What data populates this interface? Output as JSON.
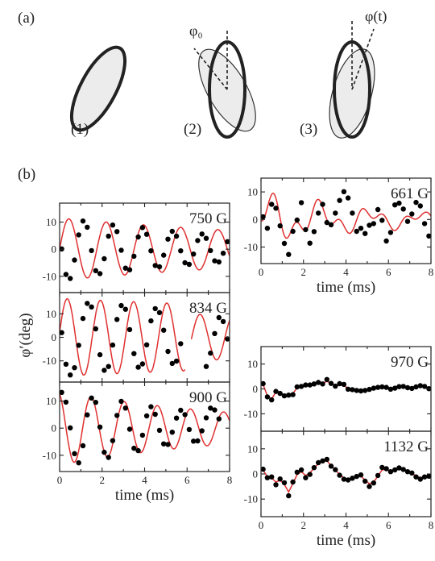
{
  "panel_a": {
    "letter": "(a)",
    "steps": [
      {
        "number": "(1)"
      },
      {
        "number": "(2)",
        "angle_label": "φ₀"
      },
      {
        "number": "(3)",
        "angle_label": "φ(t)"
      }
    ]
  },
  "panel_b": {
    "letter": "(b)",
    "ylabel": "φ′(deg)",
    "xlabel": "time (ms)"
  },
  "colors": {
    "data_points": "#000000",
    "fit_curve": "#e03030",
    "ellipse_fill": "#ececec",
    "ellipse_edge": "#222222"
  },
  "chart_data": [
    {
      "type": "scatter",
      "field_label": "750 G",
      "xlabel": "",
      "ylabel": "φ′(deg)",
      "xlim": [
        0,
        8
      ],
      "ylim": [
        -16,
        17
      ],
      "xticks": [],
      "yticks": [
        -10,
        0,
        10
      ],
      "series": [
        {
          "kind": "points",
          "x": [
            0.1,
            0.3,
            0.5,
            0.7,
            0.9,
            1.1,
            1.3,
            1.5,
            1.7,
            1.9,
            2.1,
            2.3,
            2.5,
            2.7,
            2.9,
            3.1,
            3.3,
            3.5,
            3.7,
            3.9,
            4.1,
            4.3,
            4.5,
            4.7,
            4.9,
            5.1,
            5.3,
            5.5,
            5.7,
            5.9,
            6.1,
            6.3,
            6.5,
            6.7,
            6.9,
            7.1,
            7.3,
            7.5,
            7.7,
            7.9
          ],
          "y": [
            0.1,
            -9.3,
            -10.8,
            -4.0,
            5.3,
            10.4,
            8.1,
            -0.5,
            -7.9,
            -9.0,
            -3.5,
            4.8,
            8.9,
            6.5,
            -0.4,
            -7.0,
            -7.6,
            -2.6,
            4.5,
            8.0,
            5.5,
            -0.6,
            -6.0,
            -6.5,
            -2.2,
            3.7,
            6.6,
            4.8,
            -0.6,
            -5.0,
            -5.6,
            -1.8,
            3.2,
            5.6,
            4.0,
            -0.5,
            -4.3,
            -4.7,
            -1.5,
            2.8
          ]
        },
        {
          "kind": "fit",
          "A": 11.5,
          "tau": 16,
          "freq": 0.57,
          "phase": -1.57,
          "x_end": 8
        }
      ]
    },
    {
      "type": "scatter",
      "field_label": "834 G",
      "xlabel": "",
      "ylabel": "φ′(deg)",
      "xlim": [
        0,
        8
      ],
      "ylim": [
        -19,
        19
      ],
      "xticks": [],
      "yticks": [
        -10,
        0,
        10
      ],
      "series": [
        {
          "kind": "points",
          "x": [
            0.1,
            0.3,
            0.5,
            0.7,
            0.9,
            1.1,
            1.3,
            1.5,
            1.7,
            1.9,
            2.1,
            2.3,
            2.5,
            2.7,
            2.9,
            3.1,
            3.3,
            3.5,
            3.7,
            3.9,
            4.1,
            4.3,
            4.5,
            4.7,
            4.9,
            5.1,
            5.3,
            5.5,
            5.7,
            6.9,
            7.1,
            7.3,
            7.5,
            7.7,
            7.9
          ],
          "y": [
            2.0,
            -11.4,
            -16.0,
            -12.9,
            -3.4,
            8.0,
            14.4,
            12.9,
            3.6,
            -7.4,
            -14.0,
            -12.4,
            -3.3,
            7.6,
            13.5,
            11.9,
            3.3,
            -6.9,
            -12.7,
            -11.3,
            -3.2,
            7.0,
            12.2,
            10.5,
            3.0,
            -6.0,
            -11.1,
            -10.1,
            -2.7,
            -12.4,
            -6.7,
            1.6,
            8.4,
            6.7,
            -0.7
          ]
        },
        {
          "kind": "fit",
          "A": 16.5,
          "tau": 40,
          "freq": 0.64,
          "phase": -1.45,
          "x_end": 5.9
        },
        {
          "kind": "fit",
          "A": 11.5,
          "tau": 40,
          "freq": 0.64,
          "phase": -1.45,
          "x_start": 6.2,
          "x_end": 8
        }
      ]
    },
    {
      "type": "scatter",
      "field_label": "900 G",
      "xlabel": "time (ms)",
      "ylabel": "φ′(deg)",
      "xlim": [
        0,
        8
      ],
      "ylim": [
        -16,
        17
      ],
      "xticks": [
        0,
        2,
        4,
        6,
        8
      ],
      "yticks": [
        -10,
        0,
        10
      ],
      "series": [
        {
          "kind": "points",
          "x": [
            0.1,
            0.3,
            0.5,
            0.7,
            0.9,
            1.1,
            1.3,
            1.5,
            1.7,
            1.9,
            2.1,
            2.3,
            2.5,
            2.7,
            2.9,
            3.1,
            3.3,
            3.5,
            3.7,
            3.9,
            4.1,
            4.3,
            4.5,
            4.7,
            4.9,
            5.1,
            5.3,
            5.5,
            5.7,
            5.9,
            6.1,
            6.3,
            6.5,
            6.7,
            6.9,
            7.1,
            7.3,
            7.5
          ],
          "y": [
            13.2,
            9.6,
            0.1,
            -9.4,
            -12.8,
            -6.5,
            4.9,
            11.1,
            9.5,
            0.4,
            -8.9,
            -10.8,
            -4.6,
            4.7,
            9.9,
            7.4,
            -0.4,
            -7.4,
            -8.3,
            -2.6,
            4.5,
            7.9,
            5.1,
            -0.8,
            -5.8,
            -6.0,
            -1.5,
            3.7,
            6.6,
            5.0,
            -0.5,
            -4.8,
            -4.7,
            -1.0,
            3.8,
            7.4,
            6.7,
            3.4
          ]
        },
        {
          "kind": "fit",
          "A": 13.5,
          "tau": 9.5,
          "freq": 0.64,
          "phase": 0.35,
          "x_end": 8
        }
      ]
    },
    {
      "type": "scatter",
      "field_label": "661 G",
      "xlabel": "time (ms)",
      "ylabel": "φ′(deg)",
      "xlim": [
        0,
        8
      ],
      "ylim": [
        -16,
        15
      ],
      "xticks": [
        0,
        2,
        4,
        6,
        8
      ],
      "yticks": [
        -10,
        0,
        10
      ],
      "series": [
        {
          "kind": "points",
          "x": [
            0.1,
            0.3,
            0.5,
            0.7,
            0.9,
            1.1,
            1.3,
            1.5,
            1.7,
            1.9,
            2.1,
            2.3,
            2.5,
            2.7,
            2.9,
            3.1,
            3.3,
            3.5,
            3.7,
            3.9,
            4.1,
            4.3,
            4.5,
            4.7,
            4.9,
            5.1,
            5.3,
            5.5,
            5.7,
            5.9,
            6.1,
            6.3,
            6.5,
            6.7,
            6.9,
            7.1,
            7.3,
            7.5,
            7.7,
            7.9
          ],
          "y": [
            1.0,
            -3.2,
            5.5,
            4.1,
            -2.3,
            -8.7,
            -12.7,
            -4.3,
            -0.2,
            6.1,
            -3.7,
            -8.6,
            -4.4,
            2.3,
            5.5,
            -1.1,
            -1.9,
            2.3,
            6.9,
            10.1,
            7.8,
            2.3,
            -4.3,
            -3.2,
            -5.1,
            -2.1,
            -1.5,
            3.6,
            -0.3,
            -7.8,
            -4.7,
            5.3,
            5.9,
            3.8,
            -0.7,
            2.0,
            6.2,
            4.9,
            -1.5,
            -6.0
          ]
        },
        {
          "kind": "fit_components",
          "terms": [
            {
              "A": 6.5,
              "tau": 6,
              "freq": 0.42,
              "phase": -1.0
            },
            {
              "A": 5,
              "tau": 6,
              "freq": 0.97,
              "phase": 2.5
            }
          ],
          "x_end": 8
        }
      ]
    },
    {
      "type": "scatter",
      "field_label": "970 G",
      "xlabel": "",
      "ylabel": "φ′(deg)",
      "xlim": [
        0,
        8
      ],
      "ylim": [
        -17,
        17
      ],
      "xticks": [],
      "yticks": [
        -10,
        0,
        10
      ],
      "series": [
        {
          "kind": "points",
          "x": [
            0.1,
            0.3,
            0.5,
            0.7,
            0.9,
            1.1,
            1.3,
            1.5,
            1.7,
            1.9,
            2.1,
            2.3,
            2.5,
            2.7,
            2.9,
            3.1,
            3.3,
            3.5,
            3.7,
            3.9,
            4.1,
            4.3,
            4.5,
            4.7,
            4.9,
            5.1,
            5.3,
            5.5,
            5.7,
            5.9,
            6.1,
            6.3,
            6.5,
            6.7,
            6.9,
            7.1,
            7.3,
            7.5,
            7.7,
            7.9
          ],
          "y": [
            2.1,
            -3.2,
            -4.4,
            -1.0,
            -1.8,
            -2.8,
            -2.5,
            -2.3,
            0.8,
            1.0,
            1.6,
            1.6,
            2.0,
            2.6,
            2.0,
            3.8,
            2.2,
            1.1,
            2.1,
            1.8,
            -0.1,
            -0.3,
            -0.6,
            -0.8,
            -0.6,
            -0.2,
            0.3,
            0.6,
            0.8,
            0.6,
            -0.1,
            0.3,
            0.9,
            1.0,
            0.5,
            0.2,
            0.8,
            1.3,
            1.0,
            0.1
          ]
        },
        {
          "kind": "fit_points",
          "x": [
            0.1,
            0.3,
            0.5,
            0.7,
            0.9,
            1.1,
            1.3,
            1.5,
            1.7,
            1.9,
            2.1,
            2.3,
            2.5,
            2.7,
            2.9,
            3.1,
            3.3,
            3.5,
            3.7,
            3.9,
            4.1,
            4.3,
            4.5,
            4.7,
            4.9,
            5.1,
            5.3,
            5.5,
            5.7,
            5.9,
            6.1,
            6.3,
            6.5,
            6.7,
            6.9,
            7.1,
            7.3,
            7.5,
            7.7,
            7.9
          ],
          "y": [
            1.8,
            -2.8,
            -4.0,
            -1.3,
            -1.6,
            -2.6,
            -2.4,
            -1.8,
            0.4,
            1.0,
            1.4,
            1.7,
            2.0,
            2.3,
            2.3,
            3.0,
            2.3,
            1.4,
            1.6,
            1.3,
            0.3,
            -0.2,
            -0.5,
            -0.6,
            -0.5,
            -0.1,
            0.3,
            0.5,
            0.6,
            0.5,
            0.2,
            0.4,
            0.7,
            0.8,
            0.6,
            0.4,
            0.7,
            0.9,
            0.7,
            0.2
          ]
        }
      ]
    },
    {
      "type": "scatter",
      "field_label": "1132 G",
      "xlabel": "time (ms)",
      "ylabel": "φ′(deg)",
      "xlim": [
        0,
        8
      ],
      "ylim": [
        -17,
        17
      ],
      "xticks": [
        0,
        2,
        4,
        6,
        8
      ],
      "yticks": [
        -10,
        0,
        10
      ],
      "series": [
        {
          "kind": "points",
          "x": [
            0.1,
            0.3,
            0.5,
            0.7,
            0.9,
            1.1,
            1.3,
            1.5,
            1.7,
            1.9,
            2.1,
            2.3,
            2.5,
            2.7,
            2.9,
            3.1,
            3.3,
            3.5,
            3.7,
            3.9,
            4.1,
            4.3,
            4.5,
            4.7,
            4.9,
            5.1,
            5.3,
            5.5,
            5.7,
            5.9,
            6.1,
            6.3,
            6.5,
            6.7,
            6.9,
            7.1,
            7.3,
            7.5,
            7.7,
            7.9
          ],
          "y": [
            1.9,
            -1.5,
            -1.2,
            -4.3,
            -2.0,
            -3.5,
            -8.7,
            -3.2,
            0.7,
            1.6,
            -1.5,
            -0.2,
            2.5,
            4.5,
            5.2,
            5.8,
            3.1,
            1.7,
            -0.5,
            -2.1,
            -2.4,
            -1.7,
            -1.0,
            -0.4,
            -2.9,
            -5.0,
            -3.6,
            -0.6,
            2.6,
            2.1,
            0.9,
            1.6,
            2.4,
            1.8,
            0.9,
            0.4,
            -1.2,
            -2.1,
            -1.2,
            -0.9
          ]
        },
        {
          "kind": "fit_points",
          "x": [
            0.1,
            0.3,
            0.5,
            0.7,
            0.9,
            1.1,
            1.3,
            1.5,
            1.7,
            1.9,
            2.1,
            2.3,
            2.5,
            2.7,
            2.9,
            3.1,
            3.3,
            3.5,
            3.7,
            3.9,
            4.1,
            4.3,
            4.5,
            4.7,
            4.9,
            5.1,
            5.3,
            5.5,
            5.7,
            5.9,
            6.1,
            6.3,
            6.5,
            6.7,
            6.9,
            7.1,
            7.3,
            7.5,
            7.7,
            7.9
          ],
          "y": [
            1.5,
            -1.1,
            -1.6,
            -3.2,
            -2.5,
            -4.2,
            -7.2,
            -3.8,
            -0.3,
            0.9,
            -0.6,
            0.4,
            2.4,
            4.0,
            4.9,
            5.2,
            3.4,
            1.6,
            -0.2,
            -1.6,
            -2.1,
            -1.7,
            -1.2,
            -0.9,
            -2.4,
            -3.9,
            -3.2,
            -0.9,
            1.6,
            1.8,
            1.1,
            1.4,
            1.9,
            1.6,
            0.9,
            0.3,
            -0.8,
            -1.5,
            -1.2,
            -0.8
          ]
        }
      ]
    }
  ]
}
